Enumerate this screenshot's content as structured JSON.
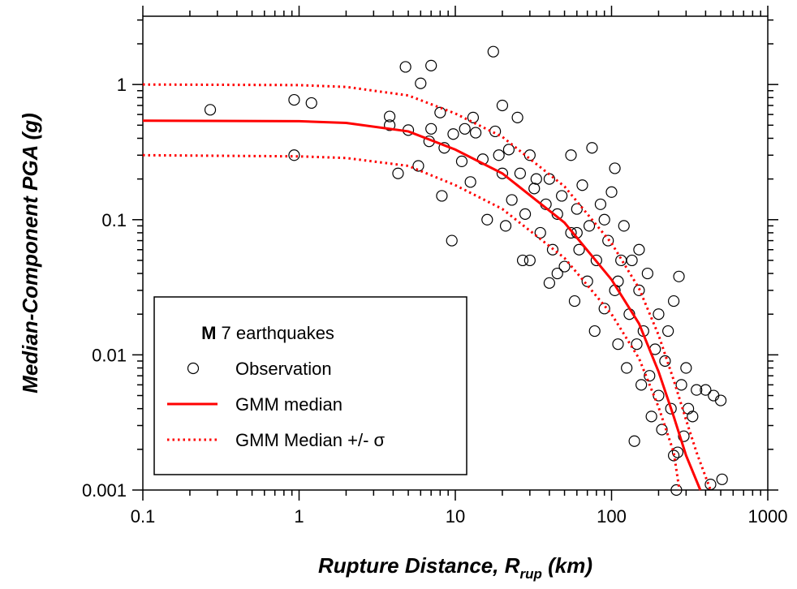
{
  "chart_data": {
    "type": "scatter",
    "xlabel": {
      "text": "Rupture Distance, R",
      "subscript": "rup",
      "suffix": " (km)"
    },
    "ylabel": "Median-Component PGA (g)",
    "xlog": true,
    "ylog": true,
    "xlim": [
      0.1,
      1000
    ],
    "ylim": [
      0.001,
      3.2
    ],
    "xticks": [
      0.1,
      1,
      10,
      100,
      1000
    ],
    "yticks": [
      0.001,
      0.01,
      0.1,
      1
    ],
    "xminorticks": [
      0.2,
      0.3,
      0.4,
      0.5,
      0.6,
      0.7,
      0.8,
      0.9,
      2,
      3,
      4,
      5,
      6,
      7,
      8,
      9,
      20,
      30,
      40,
      50,
      60,
      70,
      80,
      90,
      200,
      300,
      400,
      500,
      600,
      700,
      800,
      900
    ],
    "yminorticks": [
      0.002,
      0.003,
      0.004,
      0.005,
      0.006,
      0.007,
      0.008,
      0.009,
      0.02,
      0.03,
      0.04,
      0.05,
      0.06,
      0.07,
      0.08,
      0.09,
      0.2,
      0.3,
      0.4,
      0.5,
      0.6,
      0.7,
      0.8,
      0.9,
      2,
      3
    ],
    "legend": {
      "title": {
        "bold": "M",
        "text": " 7 earthquakes"
      },
      "position": "lower left"
    },
    "series": [
      {
        "name": "Observation",
        "type": "scatter",
        "color": "#000000",
        "x": [
          0.27,
          0.93,
          0.93,
          1.2,
          3.8,
          3.8,
          4.3,
          4.8,
          5,
          5.8,
          6,
          7,
          6.8,
          7,
          8,
          8.2,
          8.5,
          9.5,
          9.7,
          11,
          11.5,
          12.5,
          13,
          13.5,
          15,
          17.5,
          18,
          19,
          20,
          20,
          21,
          22,
          23,
          25,
          26,
          28,
          30,
          30,
          32,
          35,
          38,
          40,
          40,
          42,
          45,
          48,
          50,
          55,
          55,
          58,
          60,
          62,
          65,
          70,
          72,
          75,
          78,
          80,
          85,
          90,
          95,
          100,
          105,
          105,
          110,
          115,
          120,
          125,
          130,
          135,
          140,
          145,
          150,
          155,
          160,
          170,
          175,
          180,
          190,
          200,
          200,
          210,
          220,
          230,
          240,
          250,
          250,
          260,
          265,
          270,
          280,
          290,
          300,
          310,
          330,
          350,
          400,
          430,
          450,
          500,
          510,
          16,
          27,
          33,
          60,
          45,
          90,
          150,
          110
        ],
        "values": [
          0.65,
          0.3,
          0.77,
          0.73,
          0.58,
          0.5,
          0.22,
          1.35,
          0.46,
          0.25,
          1.02,
          1.38,
          0.38,
          0.47,
          0.62,
          0.15,
          0.34,
          0.07,
          0.43,
          0.27,
          0.47,
          0.19,
          0.57,
          0.44,
          0.28,
          1.75,
          0.45,
          0.3,
          0.7,
          0.22,
          0.09,
          0.33,
          0.14,
          0.57,
          0.22,
          0.11,
          0.3,
          0.05,
          0.17,
          0.08,
          0.13,
          0.2,
          0.034,
          0.06,
          0.11,
          0.15,
          0.045,
          0.3,
          0.08,
          0.025,
          0.12,
          0.06,
          0.18,
          0.035,
          0.09,
          0.34,
          0.015,
          0.05,
          0.13,
          0.022,
          0.07,
          0.16,
          0.24,
          0.03,
          0.012,
          0.05,
          0.09,
          0.008,
          0.02,
          0.05,
          0.0023,
          0.012,
          0.03,
          0.006,
          0.015,
          0.04,
          0.007,
          0.0035,
          0.011,
          0.02,
          0.005,
          0.0028,
          0.009,
          0.015,
          0.004,
          0.0018,
          0.025,
          0.001,
          0.0019,
          0.038,
          0.006,
          0.0025,
          0.008,
          0.004,
          0.0035,
          0.0055,
          0.0055,
          0.0011,
          0.005,
          0.0046,
          0.0012,
          0.1,
          0.05,
          0.2,
          0.08,
          0.04,
          0.1,
          0.06,
          0.035
        ]
      },
      {
        "name": "GMM median",
        "type": "line",
        "color": "#ff0000",
        "style": "solid",
        "x": [
          0.1,
          1,
          2,
          5,
          10,
          20,
          50,
          100,
          150,
          200,
          250,
          300,
          370
        ],
        "values": [
          0.54,
          0.535,
          0.52,
          0.45,
          0.33,
          0.22,
          0.095,
          0.036,
          0.017,
          0.0075,
          0.0035,
          0.0018,
          0.001
        ]
      },
      {
        "name": "GMM Median +/- σ",
        "type": "line",
        "color": "#ff0000",
        "style": "dotted",
        "curves": [
          {
            "x": [
              0.1,
              1,
              2,
              5,
              10,
              20,
              50,
              100,
              150,
              200,
              250,
              300,
              350,
              430
            ],
            "values": [
              1.0,
              0.99,
              0.96,
              0.83,
              0.61,
              0.41,
              0.176,
              0.067,
              0.031,
              0.014,
              0.0065,
              0.0033,
              0.0019,
              0.001
            ]
          },
          {
            "x": [
              0.1,
              1,
              2,
              5,
              10,
              20,
              50,
              100,
              150,
              200,
              250,
              272
            ],
            "values": [
              0.3,
              0.294,
              0.286,
              0.25,
              0.18,
              0.12,
              0.052,
              0.02,
              0.0094,
              0.0041,
              0.0019,
              0.001
            ]
          }
        ]
      }
    ]
  }
}
